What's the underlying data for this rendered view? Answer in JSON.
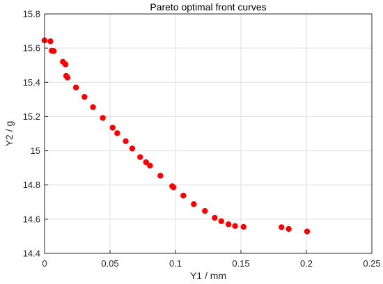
{
  "chart_data": {
    "type": "scatter",
    "title": "Pareto optimal front curves",
    "xlabel": "Y1 / mm",
    "ylabel": "Y2 / g",
    "xlim": [
      0,
      0.25
    ],
    "ylim": [
      14.4,
      15.8
    ],
    "xticks": [
      "0",
      "0.05",
      "0.1",
      "0.15",
      "0.2",
      "0.25"
    ],
    "yticks": [
      "14.4",
      "14.6",
      "14.8",
      "15",
      "15.2",
      "15.4",
      "15.6",
      "15.8"
    ],
    "grid": true,
    "marker_color": "#ff0000",
    "series": [
      {
        "points": [
          [
            0.0,
            15.645
          ],
          [
            0.0045,
            15.64
          ],
          [
            0.0055,
            15.585
          ],
          [
            0.007,
            15.583
          ],
          [
            0.014,
            15.52
          ],
          [
            0.016,
            15.505
          ],
          [
            0.0165,
            15.438
          ],
          [
            0.0175,
            15.428
          ],
          [
            0.024,
            15.37
          ],
          [
            0.0305,
            15.315
          ],
          [
            0.037,
            15.255
          ],
          [
            0.0445,
            15.192
          ],
          [
            0.052,
            15.135
          ],
          [
            0.0555,
            15.103
          ],
          [
            0.062,
            15.056
          ],
          [
            0.067,
            15.013
          ],
          [
            0.073,
            14.963
          ],
          [
            0.0775,
            14.933
          ],
          [
            0.0805,
            14.913
          ],
          [
            0.0885,
            14.854
          ],
          [
            0.0975,
            14.793
          ],
          [
            0.0985,
            14.786
          ],
          [
            0.106,
            14.738
          ],
          [
            0.114,
            14.688
          ],
          [
            0.1225,
            14.648
          ],
          [
            0.13,
            14.608
          ],
          [
            0.135,
            14.588
          ],
          [
            0.1405,
            14.57
          ],
          [
            0.1455,
            14.56
          ],
          [
            0.152,
            14.555
          ],
          [
            0.181,
            14.553
          ],
          [
            0.1865,
            14.543
          ],
          [
            0.2005,
            14.528
          ]
        ]
      }
    ]
  }
}
